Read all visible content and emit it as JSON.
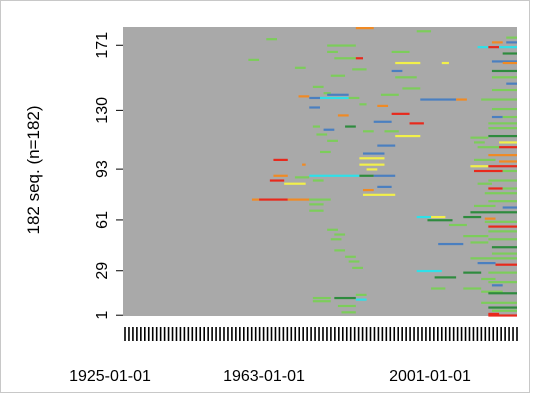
{
  "chart_data": {
    "type": "heatmap",
    "subtype": "sequence-index-plot",
    "title": "",
    "ylabel": "182 seq. (n=182)",
    "n_sequences": 182,
    "y_ticks": [
      "1",
      "29",
      "61",
      "93",
      "130",
      "171"
    ],
    "x_ticks": [
      "1925-01-01",
      "1963-01-01",
      "2001-01-01"
    ],
    "grid": false,
    "legend": "none",
    "background_state_color": "#a9a9a9",
    "colors": {
      "green": "#7ccd5a",
      "dark_green": "#2e8b3e",
      "red": "#e8291c",
      "dark_red": "#b22222",
      "orange": "#f08a24",
      "yellow": "#f2f04a",
      "cyan": "#2fe0e8",
      "blue": "#4a7fc0",
      "pink": "#f06a8a",
      "magenta": "#d02090",
      "purple": "#8b5ca8"
    },
    "segments": [
      {
        "seq": 182,
        "start": 1975,
        "end": 1980,
        "state": "orange"
      },
      {
        "seq": 180,
        "start": 1992,
        "end": 1996,
        "state": "green"
      },
      {
        "seq": 176,
        "start": 2017,
        "end": 2020,
        "state": "green"
      },
      {
        "seq": 175,
        "start": 1950,
        "end": 1953,
        "state": "green"
      },
      {
        "seq": 173,
        "start": 2013,
        "end": 2016,
        "state": "orange"
      },
      {
        "seq": 173,
        "start": 2017,
        "end": 2020,
        "state": "blue"
      },
      {
        "seq": 171,
        "start": 1967,
        "end": 1975,
        "state": "green"
      },
      {
        "seq": 170,
        "start": 2009,
        "end": 2012,
        "state": "cyan"
      },
      {
        "seq": 170,
        "start": 2012,
        "end": 2015,
        "state": "red"
      },
      {
        "seq": 170,
        "start": 2015,
        "end": 2020,
        "state": "cyan"
      },
      {
        "seq": 167,
        "start": 1967,
        "end": 1970,
        "state": "green"
      },
      {
        "seq": 167,
        "start": 1985,
        "end": 1990,
        "state": "green"
      },
      {
        "seq": 166,
        "start": 2016,
        "end": 2020,
        "state": "dark_green"
      },
      {
        "seq": 163,
        "start": 1969,
        "end": 1975,
        "state": "green"
      },
      {
        "seq": 163,
        "start": 1975,
        "end": 1977,
        "state": "red"
      },
      {
        "seq": 162,
        "start": 1945,
        "end": 1948,
        "state": "green"
      },
      {
        "seq": 161,
        "start": 2013,
        "end": 2020,
        "state": "blue"
      },
      {
        "seq": 160,
        "start": 1986,
        "end": 1993,
        "state": "yellow"
      },
      {
        "seq": 160,
        "start": 1999,
        "end": 2001,
        "state": "yellow"
      },
      {
        "seq": 160,
        "start": 2016,
        "end": 2020,
        "state": "orange"
      },
      {
        "seq": 157,
        "start": 1958,
        "end": 1961,
        "state": "green"
      },
      {
        "seq": 156,
        "start": 1974,
        "end": 1978,
        "state": "green"
      },
      {
        "seq": 155,
        "start": 1985,
        "end": 1988,
        "state": "blue"
      },
      {
        "seq": 155,
        "start": 2013,
        "end": 2020,
        "state": "dark_green"
      },
      {
        "seq": 152,
        "start": 1968,
        "end": 1972,
        "state": "green"
      },
      {
        "seq": 151,
        "start": 1986,
        "end": 1992,
        "state": "green"
      },
      {
        "seq": 151,
        "start": 2013,
        "end": 2020,
        "state": "green"
      },
      {
        "seq": 147,
        "start": 2017,
        "end": 2020,
        "state": "blue"
      },
      {
        "seq": 145,
        "start": 1963,
        "end": 1966,
        "state": "green"
      },
      {
        "seq": 144,
        "start": 1988,
        "end": 1993,
        "state": "green"
      },
      {
        "seq": 143,
        "start": 2013,
        "end": 2020,
        "state": "green"
      },
      {
        "seq": 141,
        "start": 1966,
        "end": 1968,
        "state": "green"
      },
      {
        "seq": 140,
        "start": 1967,
        "end": 1973,
        "state": "blue"
      },
      {
        "seq": 140,
        "start": 1982,
        "end": 1987,
        "state": "green"
      },
      {
        "seq": 139,
        "start": 1959,
        "end": 1962,
        "state": "orange"
      },
      {
        "seq": 138,
        "start": 1962,
        "end": 1965,
        "state": "blue"
      },
      {
        "seq": 138,
        "start": 1965,
        "end": 1973,
        "state": "cyan"
      },
      {
        "seq": 138,
        "start": 1973,
        "end": 1976,
        "state": "green"
      },
      {
        "seq": 137,
        "start": 1993,
        "end": 2003,
        "state": "blue"
      },
      {
        "seq": 137,
        "start": 2003,
        "end": 2006,
        "state": "orange"
      },
      {
        "seq": 137,
        "start": 2010,
        "end": 2020,
        "state": "green"
      },
      {
        "seq": 134,
        "start": 1976,
        "end": 1978,
        "state": "green"
      },
      {
        "seq": 133,
        "start": 1981,
        "end": 1984,
        "state": "orange"
      },
      {
        "seq": 132,
        "start": 1962,
        "end": 1965,
        "state": "blue"
      },
      {
        "seq": 131,
        "start": 2013,
        "end": 2020,
        "state": "green"
      },
      {
        "seq": 128,
        "start": 1985,
        "end": 1990,
        "state": "red"
      },
      {
        "seq": 127,
        "start": 1970,
        "end": 1973,
        "state": "orange"
      },
      {
        "seq": 126,
        "start": 2013,
        "end": 2016,
        "state": "blue"
      },
      {
        "seq": 126,
        "start": 2016,
        "end": 2020,
        "state": "green"
      },
      {
        "seq": 123,
        "start": 1980,
        "end": 1985,
        "state": "blue"
      },
      {
        "seq": 122,
        "start": 1990,
        "end": 1994,
        "state": "red"
      },
      {
        "seq": 122,
        "start": 2012,
        "end": 2020,
        "state": "green"
      },
      {
        "seq": 120,
        "start": 1963,
        "end": 1965,
        "state": "green"
      },
      {
        "seq": 120,
        "start": 1972,
        "end": 1975,
        "state": "dark_green"
      },
      {
        "seq": 119,
        "start": 2012,
        "end": 2020,
        "state": "green"
      },
      {
        "seq": 118,
        "start": 1966,
        "end": 1969,
        "state": "blue"
      },
      {
        "seq": 117,
        "start": 1977,
        "end": 1980,
        "state": "green"
      },
      {
        "seq": 117,
        "start": 1983,
        "end": 1987,
        "state": "green"
      },
      {
        "seq": 115,
        "start": 1964,
        "end": 1967,
        "state": "green"
      },
      {
        "seq": 114,
        "start": 1986,
        "end": 1993,
        "state": "yellow"
      },
      {
        "seq": 114,
        "start": 2012,
        "end": 2020,
        "state": "dark_green"
      },
      {
        "seq": 113,
        "start": 2007,
        "end": 2012,
        "state": "green"
      },
      {
        "seq": 111,
        "start": 1967,
        "end": 1970,
        "state": "green"
      },
      {
        "seq": 110,
        "start": 2008,
        "end": 2011,
        "state": "green"
      },
      {
        "seq": 110,
        "start": 2015,
        "end": 2020,
        "state": "yellow"
      },
      {
        "seq": 108,
        "start": 1981,
        "end": 1986,
        "state": "blue"
      },
      {
        "seq": 107,
        "start": 2009,
        "end": 2015,
        "state": "green"
      },
      {
        "seq": 107,
        "start": 2015,
        "end": 2020,
        "state": "red"
      },
      {
        "seq": 104,
        "start": 1965,
        "end": 1968,
        "state": "green"
      },
      {
        "seq": 103,
        "start": 1977,
        "end": 1983,
        "state": "blue"
      },
      {
        "seq": 102,
        "start": 2012,
        "end": 2020,
        "state": "orange"
      },
      {
        "seq": 100,
        "start": 1976,
        "end": 1983,
        "state": "yellow"
      },
      {
        "seq": 99,
        "start": 1952,
        "end": 1956,
        "state": "red"
      },
      {
        "seq": 99,
        "start": 2008,
        "end": 2014,
        "state": "green"
      },
      {
        "seq": 98,
        "start": 2015,
        "end": 2020,
        "state": "orange"
      },
      {
        "seq": 96,
        "start": 1976,
        "end": 1983,
        "state": "yellow"
      },
      {
        "seq": 96,
        "start": 1960,
        "end": 1961,
        "state": "orange"
      },
      {
        "seq": 95,
        "start": 2007,
        "end": 2012,
        "state": "yellow"
      },
      {
        "seq": 95,
        "start": 2012,
        "end": 2020,
        "state": "red"
      },
      {
        "seq": 93,
        "start": 1978,
        "end": 1981,
        "state": "yellow"
      },
      {
        "seq": 92,
        "start": 2008,
        "end": 2016,
        "state": "red"
      },
      {
        "seq": 92,
        "start": 2016,
        "end": 2020,
        "state": "green"
      },
      {
        "seq": 89,
        "start": 1952,
        "end": 1956,
        "state": "orange"
      },
      {
        "seq": 89,
        "start": 1962,
        "end": 1967,
        "state": "cyan"
      },
      {
        "seq": 89,
        "start": 1967,
        "end": 1976,
        "state": "cyan"
      },
      {
        "seq": 89,
        "start": 1976,
        "end": 1980,
        "state": "dark_green"
      },
      {
        "seq": 89,
        "start": 1980,
        "end": 1986,
        "state": "blue"
      },
      {
        "seq": 88,
        "start": 1958,
        "end": 1962,
        "state": "green"
      },
      {
        "seq": 86,
        "start": 1951,
        "end": 1955,
        "state": "red"
      },
      {
        "seq": 86,
        "start": 1963,
        "end": 1966,
        "state": "green"
      },
      {
        "seq": 86,
        "start": 2012,
        "end": 2020,
        "state": "green"
      },
      {
        "seq": 84,
        "start": 1955,
        "end": 1961,
        "state": "yellow"
      },
      {
        "seq": 84,
        "start": 2009,
        "end": 2013,
        "state": "green"
      },
      {
        "seq": 82,
        "start": 1981,
        "end": 1985,
        "state": "blue"
      },
      {
        "seq": 81,
        "start": 2012,
        "end": 2016,
        "state": "red"
      },
      {
        "seq": 81,
        "start": 2016,
        "end": 2020,
        "state": "green"
      },
      {
        "seq": 80,
        "start": 1977,
        "end": 1980,
        "state": "orange"
      },
      {
        "seq": 78,
        "start": 2011,
        "end": 2020,
        "state": "green"
      },
      {
        "seq": 77,
        "start": 1977,
        "end": 1986,
        "state": "yellow"
      },
      {
        "seq": 74,
        "start": 1946,
        "end": 1948,
        "state": "orange"
      },
      {
        "seq": 74,
        "start": 1948,
        "end": 1956,
        "state": "red"
      },
      {
        "seq": 74,
        "start": 1956,
        "end": 1962,
        "state": "orange"
      },
      {
        "seq": 74,
        "start": 1962,
        "end": 1968,
        "state": "green"
      },
      {
        "seq": 73,
        "start": 2012,
        "end": 2020,
        "state": "green"
      },
      {
        "seq": 71,
        "start": 1962,
        "end": 1966,
        "state": "green"
      },
      {
        "seq": 70,
        "start": 2008,
        "end": 2014,
        "state": "green"
      },
      {
        "seq": 69,
        "start": 2016,
        "end": 2020,
        "state": "blue"
      },
      {
        "seq": 67,
        "start": 1962,
        "end": 1966,
        "state": "green"
      },
      {
        "seq": 66,
        "start": 2007,
        "end": 2020,
        "state": "dark_green"
      },
      {
        "seq": 63,
        "start": 1992,
        "end": 1996,
        "state": "cyan"
      },
      {
        "seq": 63,
        "start": 1996,
        "end": 2000,
        "state": "yellow"
      },
      {
        "seq": 63,
        "start": 2005,
        "end": 2010,
        "state": "dark_green"
      },
      {
        "seq": 62,
        "start": 2011,
        "end": 2014,
        "state": "orange"
      },
      {
        "seq": 61,
        "start": 1995,
        "end": 2002,
        "state": "dark_green"
      },
      {
        "seq": 60,
        "start": 2011,
        "end": 2020,
        "state": "green"
      },
      {
        "seq": 58,
        "start": 2001,
        "end": 2006,
        "state": "green"
      },
      {
        "seq": 57,
        "start": 2012,
        "end": 2020,
        "state": "red"
      },
      {
        "seq": 55,
        "start": 1967,
        "end": 1970,
        "state": "green"
      },
      {
        "seq": 54,
        "start": 2012,
        "end": 2020,
        "state": "green"
      },
      {
        "seq": 52,
        "start": 1969,
        "end": 1972,
        "state": "green"
      },
      {
        "seq": 51,
        "start": 2005,
        "end": 2012,
        "state": "green"
      },
      {
        "seq": 49,
        "start": 1968,
        "end": 1971,
        "state": "green"
      },
      {
        "seq": 49,
        "start": 2012,
        "end": 2020,
        "state": "green"
      },
      {
        "seq": 47,
        "start": 2007,
        "end": 2012,
        "state": "green"
      },
      {
        "seq": 46,
        "start": 1998,
        "end": 2005,
        "state": "blue"
      },
      {
        "seq": 44,
        "start": 2013,
        "end": 2020,
        "state": "dark_green"
      },
      {
        "seq": 42,
        "start": 1969,
        "end": 1972,
        "state": "green"
      },
      {
        "seq": 40,
        "start": 2013,
        "end": 2020,
        "state": "green"
      },
      {
        "seq": 38,
        "start": 1972,
        "end": 1975,
        "state": "green"
      },
      {
        "seq": 37,
        "start": 2007,
        "end": 2020,
        "state": "green"
      },
      {
        "seq": 35,
        "start": 1973,
        "end": 1976,
        "state": "green"
      },
      {
        "seq": 34,
        "start": 2009,
        "end": 2014,
        "state": "blue"
      },
      {
        "seq": 33,
        "start": 2014,
        "end": 2020,
        "state": "red"
      },
      {
        "seq": 31,
        "start": 1974,
        "end": 1977,
        "state": "green"
      },
      {
        "seq": 29,
        "start": 1992,
        "end": 1999,
        "state": "cyan"
      },
      {
        "seq": 28,
        "start": 2005,
        "end": 2010,
        "state": "dark_green"
      },
      {
        "seq": 28,
        "start": 2012,
        "end": 2020,
        "state": "green"
      },
      {
        "seq": 25,
        "start": 1997,
        "end": 2003,
        "state": "dark_green"
      },
      {
        "seq": 24,
        "start": 2010,
        "end": 2014,
        "state": "green"
      },
      {
        "seq": 22,
        "start": 2012,
        "end": 2020,
        "state": "green"
      },
      {
        "seq": 20,
        "start": 2013,
        "end": 2016,
        "state": "blue"
      },
      {
        "seq": 18,
        "start": 1996,
        "end": 2000,
        "state": "green"
      },
      {
        "seq": 18,
        "start": 2005,
        "end": 2010,
        "state": "green"
      },
      {
        "seq": 16,
        "start": 2010,
        "end": 2016,
        "state": "green"
      },
      {
        "seq": 15,
        "start": 2012,
        "end": 2020,
        "state": "dark_green"
      },
      {
        "seq": 14,
        "start": 1975,
        "end": 1978,
        "state": "green"
      },
      {
        "seq": 12,
        "start": 1963,
        "end": 1968,
        "state": "green"
      },
      {
        "seq": 12,
        "start": 1969,
        "end": 1975,
        "state": "dark_green"
      },
      {
        "seq": 11,
        "start": 1975,
        "end": 1978,
        "state": "cyan"
      },
      {
        "seq": 10,
        "start": 1963,
        "end": 1968,
        "state": "green"
      },
      {
        "seq": 9,
        "start": 2010,
        "end": 2020,
        "state": "green"
      },
      {
        "seq": 7,
        "start": 1970,
        "end": 1975,
        "state": "green"
      },
      {
        "seq": 6,
        "start": 2012,
        "end": 2020,
        "state": "dark_green"
      },
      {
        "seq": 4,
        "start": 2013,
        "end": 2020,
        "state": "green"
      },
      {
        "seq": 3,
        "start": 1971,
        "end": 1975,
        "state": "green"
      },
      {
        "seq": 2,
        "start": 2012,
        "end": 2015,
        "state": "red"
      },
      {
        "seq": 1,
        "start": 2012,
        "end": 2020,
        "state": "red"
      }
    ],
    "x_tick_marks": 100
  }
}
